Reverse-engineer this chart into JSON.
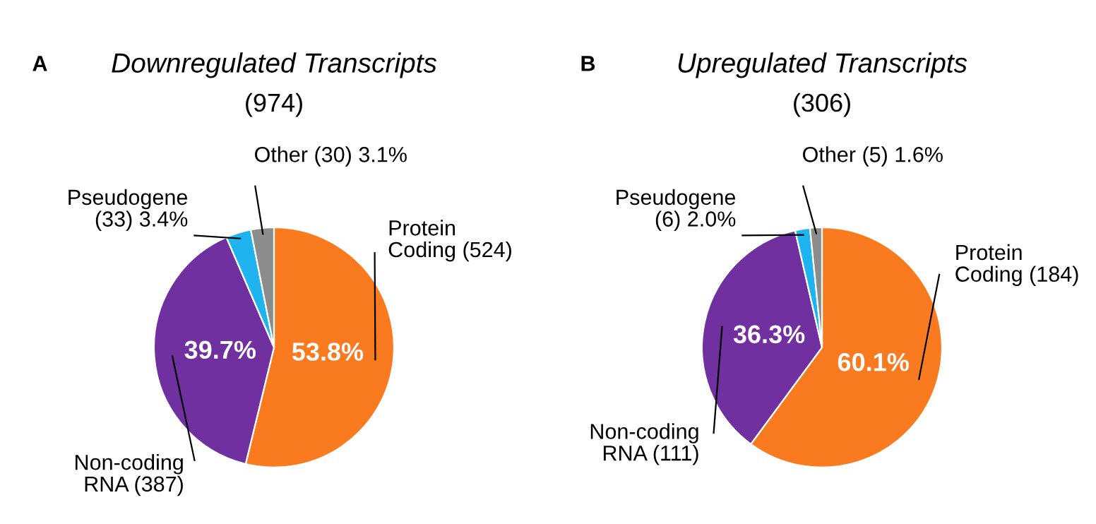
{
  "chart_data": [
    {
      "type": "pie",
      "title": "Downregulated Transcripts",
      "subtitle": "(974)",
      "annotations": [
        "A"
      ],
      "categories": [
        "Protein\nCoding (524)",
        "Non-coding\nRNA (387)",
        "Pseudogene\n(33)",
        "Other (30)"
      ],
      "values": [
        53.8,
        39.7,
        3.4,
        3.1
      ],
      "value_labels": [
        "53.8%",
        "39.7%",
        "3.4%",
        "3.1%"
      ],
      "colors": [
        "#f97a1f",
        "#7030a0",
        "#1fb4ef",
        "#8c8c8c"
      ]
    },
    {
      "type": "pie",
      "title": "Upregulated Transcripts",
      "subtitle": "(306)",
      "annotations": [
        "B"
      ],
      "categories": [
        "Protein\nCoding (184)",
        "Non-coding\nRNA (111)",
        "Pseudogene\n(6)",
        "Other (5)"
      ],
      "values": [
        60.1,
        36.3,
        2.0,
        1.6
      ],
      "value_labels": [
        "60.1%",
        "36.3%",
        "2.0%",
        "1.6%"
      ],
      "colors": [
        "#f97a1f",
        "#7030a0",
        "#1fb4ef",
        "#8c8c8c"
      ]
    }
  ]
}
